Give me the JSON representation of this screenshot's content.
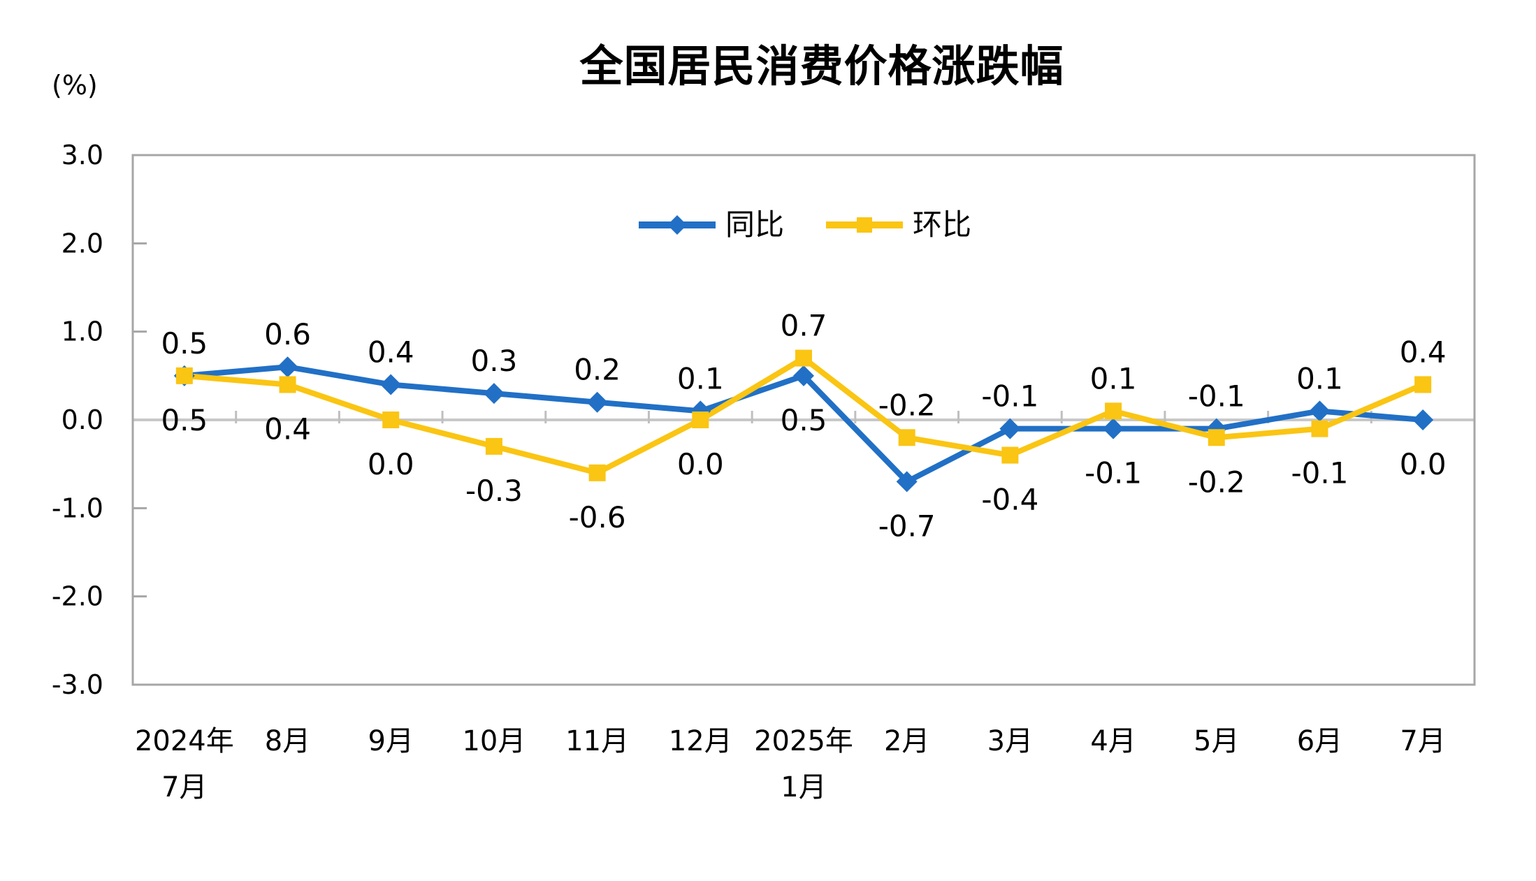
{
  "chart_data": {
    "type": "line",
    "title": "全国居民消费价格涨跌幅",
    "unit_label": "(%)",
    "categories": [
      "2024年\n7月",
      "8月",
      "9月",
      "10月",
      "11月",
      "12月",
      "2025年\n1月",
      "2月",
      "3月",
      "4月",
      "5月",
      "6月",
      "7月"
    ],
    "series": [
      {
        "name": "同比",
        "marker": "diamond",
        "color": "#2170C6",
        "values": [
          0.5,
          0.6,
          0.4,
          0.3,
          0.2,
          0.1,
          0.5,
          -0.7,
          -0.1,
          -0.1,
          -0.1,
          0.1,
          0.0
        ]
      },
      {
        "name": "环比",
        "marker": "square",
        "color": "#FAC513",
        "values": [
          0.5,
          0.4,
          0.0,
          -0.3,
          -0.6,
          0.0,
          0.7,
          -0.2,
          -0.4,
          0.1,
          -0.2,
          -0.1,
          0.4
        ]
      }
    ],
    "ylim": [
      -3.0,
      3.0
    ],
    "ytick_step": 1.0,
    "ytick_labels": [
      "3.0",
      "2.0",
      "1.0",
      "0.0",
      "-1.0",
      "-2.0",
      "-3.0"
    ],
    "legend_position": "top-center-inside",
    "grid": "zero-line-only",
    "axis_color": "#A6A6A6",
    "zero_line_color": "#C8C8C8",
    "boundary_tick_color": "#BFBFBF",
    "text_color": "#000000",
    "background_color": "#FFFFFF"
  }
}
